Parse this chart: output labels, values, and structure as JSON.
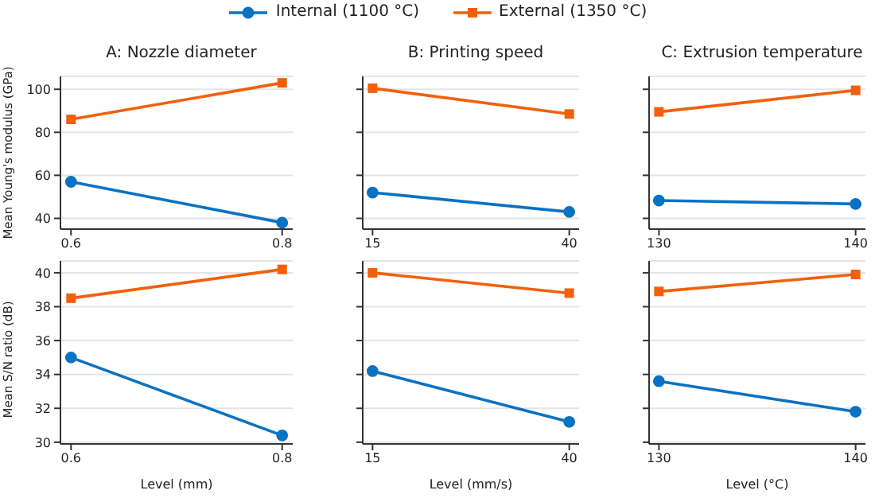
{
  "chart_data": [
    {
      "type": "line",
      "title": "A: Nozzle diameter",
      "ylabel": "Mean Young's modulus (GPa)",
      "x": [
        0.6,
        0.8
      ],
      "xlim": [
        0.59,
        0.81
      ],
      "xticks": [
        0.6,
        0.8
      ],
      "ylim": [
        35,
        106
      ],
      "yticks": [
        40,
        60,
        80,
        100
      ],
      "grid": "y",
      "legend": "top",
      "series": [
        {
          "name": "Internal (1100 °C)",
          "color": "#0a72c2",
          "marker": "circle",
          "values": [
            57,
            38
          ]
        },
        {
          "name": "External (1350 °C)",
          "color": "#f2600c",
          "marker": "square",
          "values": [
            86,
            103
          ]
        }
      ]
    },
    {
      "type": "line",
      "title": "B: Printing speed",
      "x": [
        15,
        40
      ],
      "xlim": [
        13.75,
        41.25
      ],
      "xticks": [
        15,
        40
      ],
      "ylim": [
        35,
        106
      ],
      "yticks": [
        40,
        60,
        80,
        100
      ],
      "grid": "y",
      "tick_labels": "x",
      "series": [
        {
          "color": "#0a72c2",
          "marker": "circle",
          "values": [
            52,
            43
          ]
        },
        {
          "color": "#f2600c",
          "marker": "square",
          "values": [
            100.5,
            88.5
          ]
        }
      ]
    },
    {
      "type": "line",
      "title": "C: Extrusion temperature",
      "x": [
        130,
        140
      ],
      "xlim": [
        129.5,
        140.5
      ],
      "xticks": [
        130,
        140
      ],
      "ylim": [
        35,
        106
      ],
      "yticks": [
        40,
        60,
        80,
        100
      ],
      "grid": "y",
      "tick_labels": "x",
      "series": [
        {
          "color": "#0a72c2",
          "marker": "circle",
          "values": [
            48.3,
            46.7
          ]
        },
        {
          "color": "#f2600c",
          "marker": "square",
          "values": [
            89.5,
            99.5
          ]
        }
      ]
    },
    {
      "type": "line",
      "xlabel": "Level (mm)",
      "ylabel": "Mean S/N ratio (dB)",
      "x": [
        0.6,
        0.8
      ],
      "xlim": [
        0.59,
        0.81
      ],
      "xticks": [
        0.6,
        0.8
      ],
      "ylim": [
        29.9,
        40.7
      ],
      "yticks": [
        30,
        32,
        34,
        36,
        38,
        40
      ],
      "grid": "y",
      "series": [
        {
          "color": "#0a72c2",
          "marker": "circle",
          "values": [
            35.0,
            30.4
          ]
        },
        {
          "color": "#f2600c",
          "marker": "square",
          "values": [
            38.5,
            40.2
          ]
        }
      ]
    },
    {
      "type": "line",
      "xlabel": "Level (mm/s)",
      "x": [
        15,
        40
      ],
      "xlim": [
        13.75,
        41.25
      ],
      "xticks": [
        15,
        40
      ],
      "ylim": [
        29.9,
        40.7
      ],
      "yticks": [
        30,
        32,
        34,
        36,
        38,
        40
      ],
      "grid": "y",
      "tick_labels": "x",
      "series": [
        {
          "color": "#0a72c2",
          "marker": "circle",
          "values": [
            34.2,
            31.2
          ]
        },
        {
          "color": "#f2600c",
          "marker": "square",
          "values": [
            40.0,
            38.8
          ]
        }
      ]
    },
    {
      "type": "line",
      "xlabel": "Level (°C)",
      "x": [
        130,
        140
      ],
      "xlim": [
        129.5,
        140.5
      ],
      "xticks": [
        130,
        140
      ],
      "ylim": [
        29.9,
        40.7
      ],
      "yticks": [
        30,
        32,
        34,
        36,
        38,
        40
      ],
      "grid": "y",
      "tick_labels": "x",
      "series": [
        {
          "color": "#0a72c2",
          "marker": "circle",
          "values": [
            33.6,
            31.8
          ]
        },
        {
          "color": "#f2600c",
          "marker": "square",
          "values": [
            38.9,
            39.9
          ]
        }
      ]
    }
  ]
}
